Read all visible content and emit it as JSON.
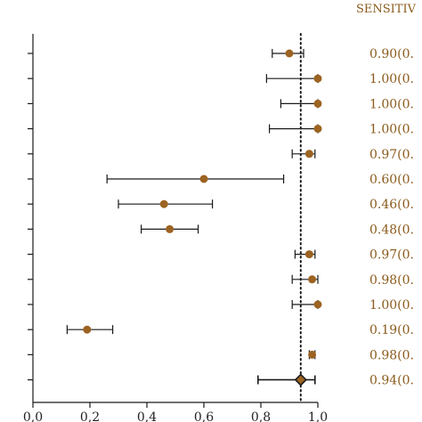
{
  "chart_data": {
    "type": "scatter",
    "subtype": "forest-plot",
    "column_header": "SENSITIV",
    "xlim": [
      0.0,
      1.0
    ],
    "x_ticks": [
      "0,0",
      "0,2",
      "0,4",
      "0,6",
      "0,8",
      "1,0"
    ],
    "x_tick_values": [
      0.0,
      0.2,
      0.4,
      0.6,
      0.8,
      1.0
    ],
    "pooled_reference": 0.94,
    "studies": [
      {
        "estimate": 0.9,
        "lower": 0.84,
        "upper": 0.95,
        "label": "0.90(0."
      },
      {
        "estimate": 1.0,
        "lower": 0.82,
        "upper": 1.0,
        "label": "1.00(0."
      },
      {
        "estimate": 1.0,
        "lower": 0.87,
        "upper": 1.0,
        "label": "1.00(0."
      },
      {
        "estimate": 1.0,
        "lower": 0.83,
        "upper": 1.0,
        "label": "1.00(0."
      },
      {
        "estimate": 0.97,
        "lower": 0.91,
        "upper": 0.99,
        "label": "0.97(0."
      },
      {
        "estimate": 0.6,
        "lower": 0.26,
        "upper": 0.88,
        "label": "0.60(0."
      },
      {
        "estimate": 0.46,
        "lower": 0.3,
        "upper": 0.63,
        "label": "0.46(0."
      },
      {
        "estimate": 0.48,
        "lower": 0.38,
        "upper": 0.58,
        "label": "0.48(0."
      },
      {
        "estimate": 0.97,
        "lower": 0.92,
        "upper": 0.99,
        "label": "0.97(0."
      },
      {
        "estimate": 0.98,
        "lower": 0.91,
        "upper": 1.0,
        "label": "0.98(0."
      },
      {
        "estimate": 1.0,
        "lower": 0.91,
        "upper": 1.0,
        "label": "1.00(0."
      },
      {
        "estimate": 0.19,
        "lower": 0.12,
        "upper": 0.28,
        "label": "0.19(0."
      },
      {
        "estimate": 0.98,
        "lower": 0.97,
        "upper": 0.99,
        "label": "0.98(0."
      }
    ],
    "pooled": {
      "estimate": 0.94,
      "lower": 0.79,
      "upper": 0.99,
      "label": "0.94(0."
    },
    "colors": {
      "point": "#9C6322",
      "line": "#1a1a1a",
      "label": "#8B5A1B",
      "pooled_fill": "#9C6322"
    }
  }
}
